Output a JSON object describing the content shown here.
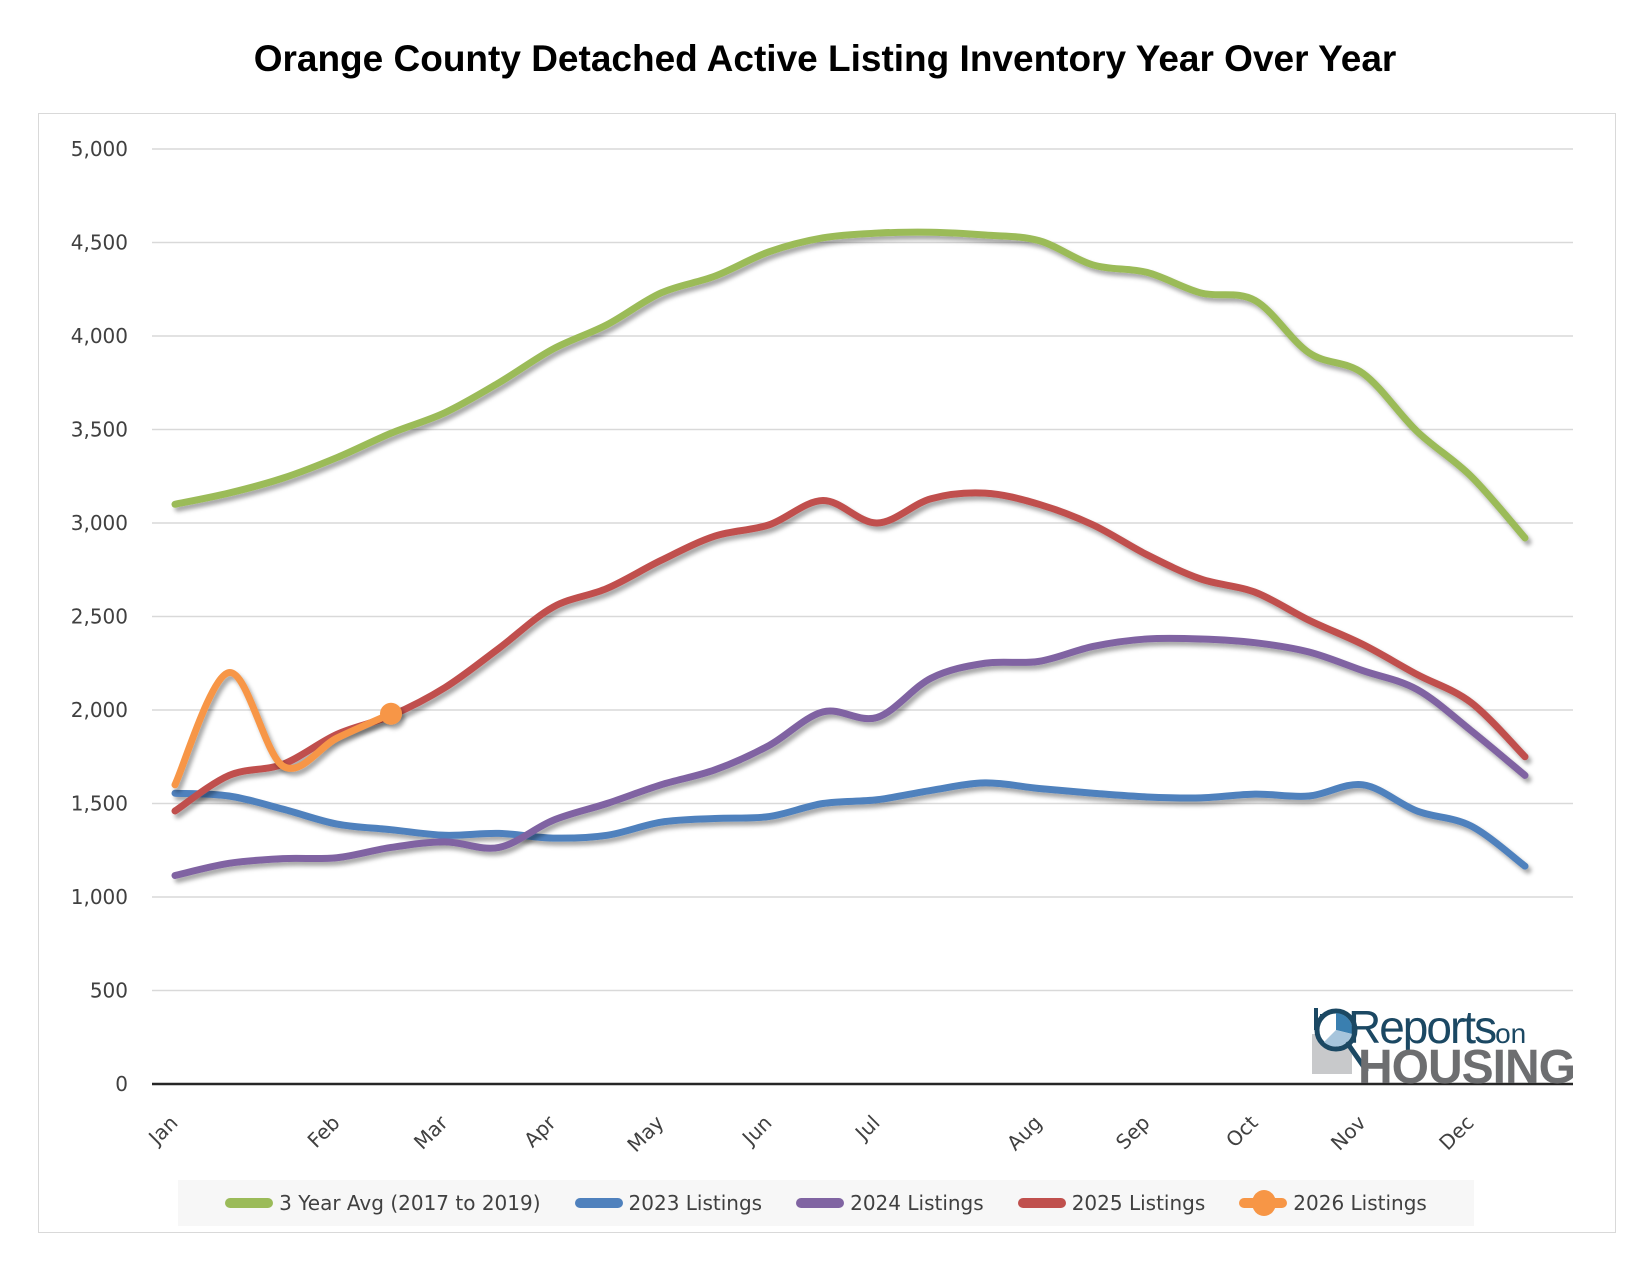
{
  "chart_data": {
    "type": "line",
    "title": "Orange County Detached Active Listing Inventory Year Over Year",
    "xlabel": "",
    "ylabel": "",
    "ylim": [
      0,
      5000
    ],
    "yticks": [
      0,
      500,
      1000,
      1500,
      2000,
      2500,
      3000,
      3500,
      4000,
      4500,
      5000
    ],
    "ytick_labels": [
      "0",
      "500",
      "1,000",
      "1,500",
      "2,000",
      "2,500",
      "3,000",
      "3,500",
      "4,000",
      "4,500",
      "5,000"
    ],
    "grid": "horizontal",
    "legend_position": "bottom",
    "point_count": 26,
    "x_tick_labels": [
      {
        "index": 0,
        "label": "Jan"
      },
      {
        "index": 3,
        "label": "Feb"
      },
      {
        "index": 5,
        "label": "Mar"
      },
      {
        "index": 7,
        "label": "Apr"
      },
      {
        "index": 9,
        "label": "May"
      },
      {
        "index": 11,
        "label": "Jun"
      },
      {
        "index": 13,
        "label": "Jul"
      },
      {
        "index": 16,
        "label": "Aug"
      },
      {
        "index": 18,
        "label": "Sep"
      },
      {
        "index": 20,
        "label": "Oct"
      },
      {
        "index": 22,
        "label": "Nov"
      },
      {
        "index": 24,
        "label": "Dec"
      }
    ],
    "series": [
      {
        "name": "3 Year Avg (2017 to 2019)",
        "color": "#9bbb59",
        "values": [
          3100,
          3160,
          3240,
          3350,
          3480,
          3590,
          3750,
          3930,
          4060,
          4230,
          4320,
          4450,
          4525,
          4550,
          4555,
          4540,
          4510,
          4380,
          4340,
          4230,
          4190,
          3910,
          3800,
          3490,
          3250,
          2920
        ]
      },
      {
        "name": "2023 Listings",
        "color": "#4f81bd",
        "values": [
          1555,
          1540,
          1470,
          1390,
          1360,
          1330,
          1340,
          1315,
          1330,
          1400,
          1420,
          1430,
          1500,
          1520,
          1570,
          1610,
          1580,
          1555,
          1535,
          1530,
          1550,
          1540,
          1600,
          1460,
          1380,
          1165
        ]
      },
      {
        "name": "2024 Listings",
        "color": "#8064a2",
        "values": [
          1115,
          1180,
          1205,
          1210,
          1265,
          1295,
          1265,
          1410,
          1500,
          1600,
          1680,
          1810,
          1990,
          1960,
          2170,
          2250,
          2260,
          2340,
          2380,
          2380,
          2360,
          2310,
          2210,
          2110,
          1890,
          1650
        ]
      },
      {
        "name": "2025 Listings",
        "color": "#c0504d",
        "values": [
          1460,
          1650,
          1710,
          1870,
          1970,
          2120,
          2330,
          2550,
          2650,
          2800,
          2930,
          2990,
          3120,
          3000,
          3130,
          3160,
          3100,
          2990,
          2830,
          2700,
          2630,
          2480,
          2350,
          2190,
          2040,
          1750
        ]
      },
      {
        "name": "2026 Listings",
        "color": "#f79646",
        "last_point_marker": true,
        "values": [
          1600,
          2200,
          1700,
          1850,
          1980
        ]
      }
    ]
  },
  "logo": {
    "line1": "Reports",
    "line1_suffix": "on",
    "line2": "HOUSING"
  }
}
